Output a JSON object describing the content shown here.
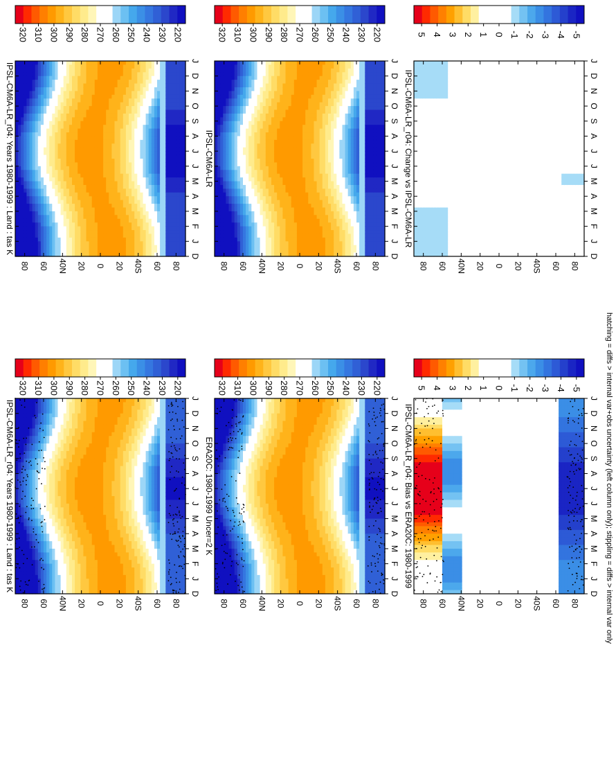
{
  "caption": "hatching = diffs > internal var+obs uncertainty (left column only); stippling = diffs > internal var only",
  "panels": [
    {
      "id": "model-left",
      "title": "IPSL-CM6A-LR_r04: Years 1980-1999 : Land : tas K",
      "kind": "abs",
      "hatch": true
    },
    {
      "id": "obs",
      "title": "ERA20C: 1980-1999 Uncer=2 K",
      "kind": "abs",
      "hatch": true
    },
    {
      "id": "bias",
      "title": "IPSL-CM6A-LR_r04: Bias vs ERA20C: 1980-1999",
      "kind": "diff",
      "hatch": true
    },
    {
      "id": "model-right",
      "title": "IPSL-CM6A-LR_r04: Years 1980-1999 : Land : tas K",
      "kind": "abs",
      "hatch": false
    },
    {
      "id": "ref",
      "title": "IPSL-CM6A-LR",
      "kind": "abs",
      "hatch": false
    },
    {
      "id": "change",
      "title": "IPSL-CM6A-LR_r04: Change vs IPSL-CM6A-LR",
      "kind": "diff",
      "hatch": false
    }
  ],
  "axes": {
    "months": [
      "D",
      "J",
      "F",
      "M",
      "A",
      "M",
      "J",
      "J",
      "A",
      "S",
      "O",
      "N",
      "D",
      "J"
    ],
    "lat_ticks": [
      "80",
      "60",
      "40N",
      "20",
      "0",
      "20",
      "40S",
      "60",
      "80"
    ]
  },
  "colorbars": {
    "abs": {
      "ticks": [
        "320",
        "310",
        "300",
        "290",
        "280",
        "270",
        "260",
        "250",
        "240",
        "230",
        "220"
      ],
      "colors": [
        "#e6001a",
        "#ff2a00",
        "#ff5a00",
        "#ff7f00",
        "#ff9a00",
        "#ffb31a",
        "#ffc840",
        "#ffdc66",
        "#ffeb8c",
        "#fff6b8",
        "#ffffff",
        "#ffffff",
        "#9cd6f7",
        "#6cc0f2",
        "#45a8ec",
        "#3b8fe6",
        "#3577e0",
        "#3060d6",
        "#2b47cc",
        "#2028c4",
        "#1010c0"
      ]
    },
    "diff": {
      "ticks": [
        "5",
        "4",
        "3",
        "2",
        "1",
        "0",
        "-1",
        "-2",
        "-3",
        "-4",
        "-5"
      ],
      "colors": [
        "#e6001a",
        "#ff2a00",
        "#ff5a00",
        "#ff8000",
        "#ffa000",
        "#ffbf30",
        "#ffdc66",
        "#fff0a0",
        "#ffffff",
        "#ffffff",
        "#ffffff",
        "#ffffff",
        "#a6dcf7",
        "#74c2f2",
        "#4ca8ec",
        "#3b8ee6",
        "#3374df",
        "#2d5ad6",
        "#2440cc",
        "#1a25c4",
        "#1010c0"
      ]
    }
  },
  "chart_data": [
    {
      "type": "heatmap",
      "panel": "model-left",
      "title": "IPSL-CM6A-LR_r04: Years 1980-1999 : Land : tas K",
      "x": "month (Dec–Jan)",
      "y": "latitude (80N–80S)",
      "units": "K",
      "range": [
        220,
        320
      ]
    },
    {
      "type": "heatmap",
      "panel": "obs",
      "title": "ERA20C: 1980-1999 Uncer=2 K",
      "x": "month (Dec–Jan)",
      "y": "latitude (80N–80S)",
      "units": "K",
      "range": [
        220,
        320
      ]
    },
    {
      "type": "heatmap",
      "panel": "bias",
      "title": "IPSL-CM6A-LR_r04: Bias vs ERA20C: 1980-1999",
      "x": "month (Dec–Jan)",
      "y": "latitude (80N–80S)",
      "units": "K",
      "range": [
        -5,
        5
      ]
    },
    {
      "type": "heatmap",
      "panel": "model-right",
      "title": "IPSL-CM6A-LR_r04: Years 1980-1999 : Land : tas K",
      "x": "month (Dec–Jan)",
      "y": "latitude (80N–80S)",
      "units": "K",
      "range": [
        220,
        320
      ]
    },
    {
      "type": "heatmap",
      "panel": "ref",
      "title": "IPSL-CM6A-LR",
      "x": "month (Dec–Jan)",
      "y": "latitude (80N–80S)",
      "units": "K",
      "range": [
        220,
        320
      ]
    },
    {
      "type": "heatmap",
      "panel": "change",
      "title": "IPSL-CM6A-LR_r04: Change vs IPSL-CM6A-LR",
      "x": "month (Dec–Jan)",
      "y": "latitude (80N–80S)",
      "units": "K",
      "range": [
        -5,
        5
      ]
    }
  ]
}
